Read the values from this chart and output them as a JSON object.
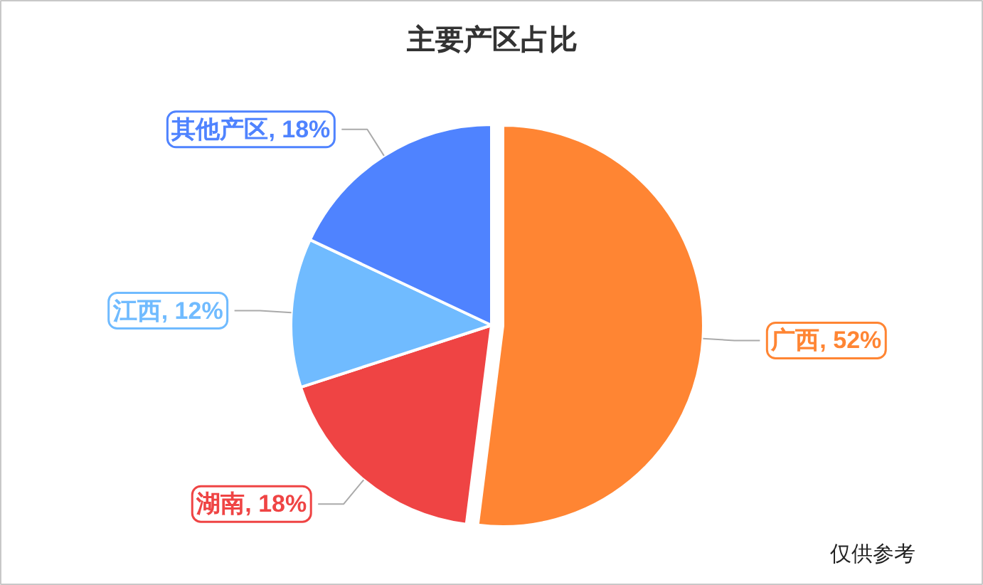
{
  "chart_data": {
    "type": "pie",
    "title": "主要产区占比",
    "categories": [
      "广西",
      "湖南",
      "江西",
      "其他产区"
    ],
    "values": [
      52,
      18,
      12,
      18
    ],
    "value_labels": [
      "52%",
      "18%",
      "12%",
      "18%"
    ],
    "colors": [
      "#ff8533",
      "#ef4444",
      "#70bbff",
      "#4f83ff"
    ],
    "annotations": [
      "仅供参考"
    ]
  }
}
